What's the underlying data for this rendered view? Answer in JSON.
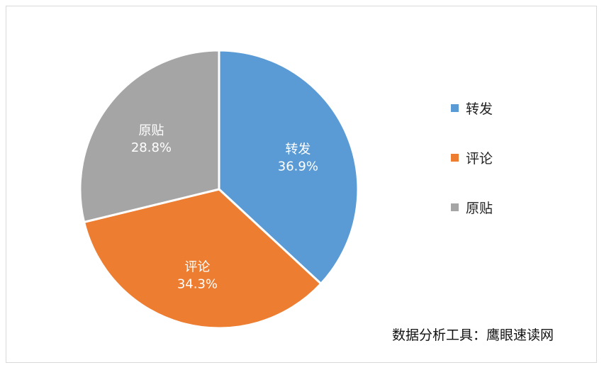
{
  "chart_data": {
    "type": "pie",
    "title": "",
    "start": "12 o'clock",
    "direction": "clockwise",
    "slices": [
      {
        "label": "转发",
        "value": 36.9,
        "percent_label": "36.9%",
        "color": "#5b9bd5"
      },
      {
        "label": "评论",
        "value": 34.3,
        "percent_label": "34.3%",
        "color": "#ed7d31"
      },
      {
        "label": "原贴",
        "value": 28.8,
        "percent_label": "28.8%",
        "color": "#a5a5a5"
      }
    ],
    "legend": {
      "placement": "right",
      "entries": [
        "转发",
        "评论",
        "原贴"
      ]
    }
  },
  "source_note": "数据分析工具：鹰眼速读网"
}
